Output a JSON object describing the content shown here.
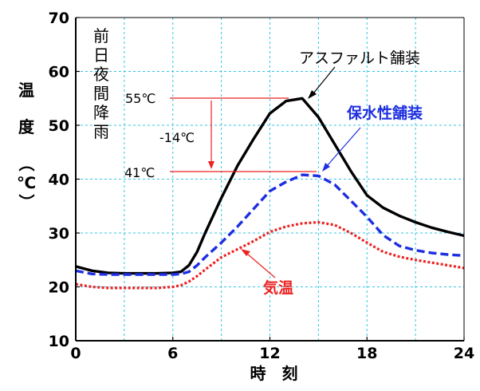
{
  "chart_data": {
    "type": "line",
    "title": "",
    "xlabel": "時　刻",
    "ylabel": "温　度　（℃）",
    "xlim": [
      0,
      24
    ],
    "ylim": [
      10,
      70
    ],
    "xticks": [
      "0",
      "6",
      "12",
      "18",
      "24"
    ],
    "yticks": [
      "10",
      "20",
      "30",
      "40",
      "50",
      "60",
      "70"
    ],
    "grid": true,
    "note": "前日夜間降雨",
    "series": [
      {
        "name": "アスファルト舗装",
        "color": "#000000",
        "style": "solid",
        "x": [
          0,
          1,
          2,
          3,
          4,
          5,
          6,
          6.5,
          7,
          7.5,
          8,
          9,
          10,
          11,
          12,
          13,
          14,
          15,
          16,
          17,
          18,
          19,
          20,
          21,
          22,
          23,
          24
        ],
        "y": [
          23.8,
          23.0,
          22.6,
          22.5,
          22.5,
          22.5,
          22.6,
          22.8,
          24.0,
          26.5,
          30.0,
          36.5,
          42.5,
          47.5,
          52.2,
          54.5,
          55.0,
          51.5,
          46.5,
          41.5,
          37.0,
          34.7,
          33.2,
          32.0,
          31.0,
          30.2,
          29.5
        ]
      },
      {
        "name": "保水性舗装",
        "color": "#1c2ee0",
        "style": "dashed",
        "x": [
          0,
          1,
          2,
          3,
          4,
          5,
          6,
          6.5,
          7,
          7.5,
          8,
          9,
          10,
          11,
          12,
          13,
          14,
          15,
          16,
          17,
          18,
          19,
          20,
          21,
          22,
          23,
          24
        ],
        "y": [
          23.0,
          22.4,
          22.3,
          22.3,
          22.3,
          22.3,
          22.3,
          22.4,
          22.8,
          24.0,
          25.5,
          28.2,
          31.2,
          34.5,
          37.8,
          39.5,
          40.8,
          40.6,
          39.0,
          36.0,
          33.0,
          29.6,
          27.6,
          26.8,
          26.3,
          26.0,
          25.8
        ]
      },
      {
        "name": "気温",
        "color": "#ee2222",
        "style": "dotted",
        "x": [
          0,
          1,
          2,
          3,
          4,
          5,
          6,
          6.5,
          7,
          7.5,
          8,
          9,
          10,
          11,
          12,
          13,
          14,
          15,
          16,
          17,
          18,
          19,
          20,
          21,
          22,
          23,
          24
        ],
        "y": [
          20.5,
          20.0,
          19.8,
          19.8,
          19.8,
          19.8,
          20.0,
          20.3,
          21.0,
          22.0,
          23.2,
          25.5,
          27.0,
          28.5,
          30.2,
          31.2,
          31.8,
          32.0,
          31.5,
          30.0,
          28.2,
          26.5,
          25.6,
          25.0,
          24.5,
          24.0,
          23.5
        ]
      }
    ],
    "annotations": {
      "peak_asphalt": "55℃",
      "peak_permeable": "41℃",
      "difference": "-14℃"
    }
  }
}
